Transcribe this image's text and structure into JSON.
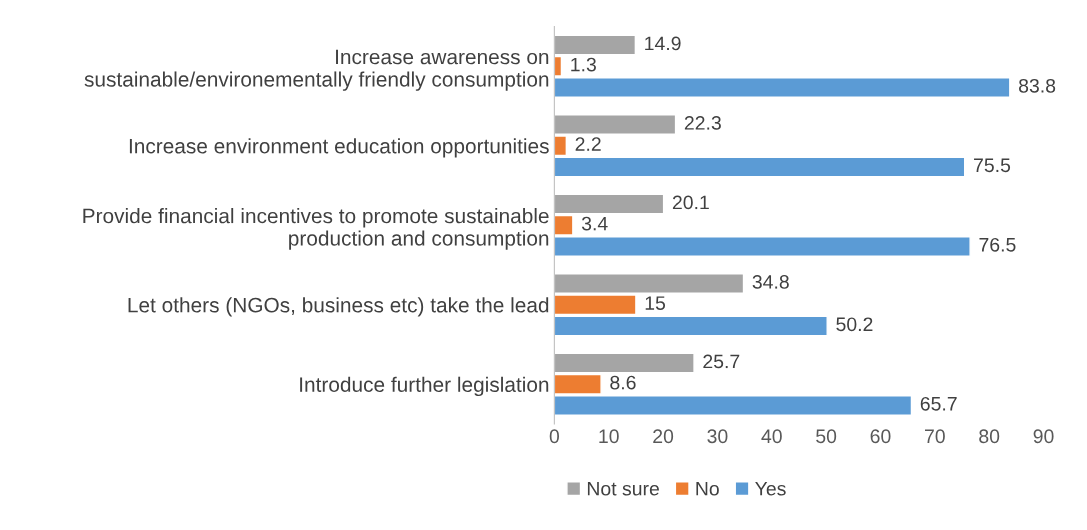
{
  "chart_data": {
    "type": "bar",
    "orientation": "horizontal",
    "categories": [
      "Increase awareness on\nsustainable/environementally friendly consumption",
      "Increase environment education opportunities",
      "Provide financial incentives to promote sustainable\nproduction and consumption",
      "Let others (NGOs, business etc) take the lead",
      "Introduce further legislation"
    ],
    "series": [
      {
        "name": "Not sure",
        "color": "#a5a5a5",
        "values": [
          14.9,
          22.3,
          20.1,
          34.8,
          25.7
        ]
      },
      {
        "name": "No",
        "color": "#ed7d31",
        "values": [
          1.3,
          2.2,
          3.4,
          15,
          8.6
        ]
      },
      {
        "name": "Yes",
        "color": "#5b9bd5",
        "values": [
          83.8,
          75.5,
          76.5,
          50.2,
          65.7
        ]
      }
    ],
    "xlim": [
      0,
      90
    ],
    "xticks": [
      0,
      10,
      20,
      30,
      40,
      50,
      60,
      70,
      80,
      90
    ],
    "data_labels": true,
    "grid": false,
    "legend": "bottom"
  }
}
